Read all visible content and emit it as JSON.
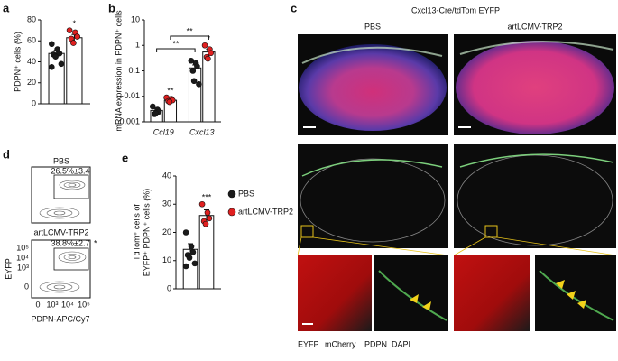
{
  "chart_data": [
    {
      "type": "bar_dots",
      "panel": "a",
      "ylabel": "PDPN⁺ cells (%)",
      "ylim": [
        0,
        80
      ],
      "yticks": [
        0,
        20,
        40,
        60,
        80
      ],
      "series": [
        {
          "color": "#1a1a1a",
          "values": [
            48
          ],
          "errors": [
            3
          ],
          "points": [
            [
              57,
              52,
              48,
              47,
              45,
              38,
              35
            ]
          ]
        },
        {
          "color": "#e02020",
          "values": [
            63
          ],
          "errors": [
            3
          ],
          "points": [
            [
              70,
              68,
              64,
              62,
              58
            ]
          ],
          "sig": [
            "*"
          ]
        }
      ]
    },
    {
      "type": "bar_dots",
      "panel": "b",
      "ylabel": "mRNA expression in PDPN⁺ cells",
      "log": true,
      "ylim": [
        0.001,
        10
      ],
      "yticks": [
        0.001,
        0.01,
        0.1,
        1,
        10
      ],
      "categories": [
        "Ccl19",
        "Cxcl13"
      ],
      "brackets": [
        "**",
        "**"
      ],
      "series": [
        {
          "color": "#1a1a1a",
          "values": [
            0.0028,
            0.13
          ],
          "errors": [
            0.0005,
            0.04
          ],
          "points": [
            [
              0.004,
              0.003,
              0.0025,
              0.002,
              0.0022
            ],
            [
              0.25,
              0.2,
              0.15,
              0.1,
              0.04,
              0.03
            ]
          ]
        },
        {
          "color": "#e02020",
          "values": [
            0.007,
            0.55
          ],
          "errors": [
            0.001,
            0.15
          ],
          "points": [
            [
              0.009,
              0.008,
              0.007,
              0.0065,
              0.006
            ],
            [
              1.0,
              0.7,
              0.5,
              0.35,
              0.3
            ]
          ],
          "sig": [
            "**",
            "*"
          ]
        }
      ]
    },
    {
      "type": "bar_dots",
      "panel": "e",
      "ylabel": [
        "TdTom⁺ cells of",
        "EYFP⁺ PDPN⁺ cells (%)"
      ],
      "ylim": [
        0,
        40
      ],
      "yticks": [
        0,
        10,
        20,
        30,
        40
      ],
      "legend": true,
      "series": [
        {
          "name": "PBS",
          "color": "#1a1a1a",
          "values": [
            14
          ],
          "errors": [
            2
          ],
          "points": [
            [
              20,
              15,
              13,
              12,
              11,
              9,
              8
            ]
          ]
        },
        {
          "name": "artLCMV-TRP2",
          "color": "#e02020",
          "values": [
            26
          ],
          "errors": [
            2
          ],
          "points": [
            [
              30,
              27,
              25,
              24,
              23
            ]
          ],
          "sig": [
            "***"
          ]
        }
      ]
    }
  ],
  "imaging": {
    "panel": "c",
    "title": "Cxcl13-Cre/tdTom EYFP",
    "columns": [
      "PBS",
      "artLCMV-TRP2"
    ],
    "legend": [
      {
        "text": "EYFP",
        "color": "#2ecc40"
      },
      {
        "text": "mCherry",
        "color": "#e8141e"
      },
      {
        "text": "PDPN",
        "color": "#222222"
      },
      {
        "text": "DAPI",
        "color": "#1f3fd0"
      }
    ]
  },
  "flow": {
    "panel": "d",
    "plots": [
      {
        "title": "PBS",
        "gate": "26.5%±3.4"
      },
      {
        "title": "artLCMV-TRP2",
        "gate": "38.8%±2.7",
        "sig": "*"
      }
    ],
    "ylabel": "EYFP",
    "xlabel": "PDPN-APC/Cy7",
    "yticks": [
      "10⁵",
      "10⁴",
      "10³",
      "0"
    ],
    "xticks": [
      "0",
      "10³",
      "10⁴",
      "10⁵"
    ]
  }
}
